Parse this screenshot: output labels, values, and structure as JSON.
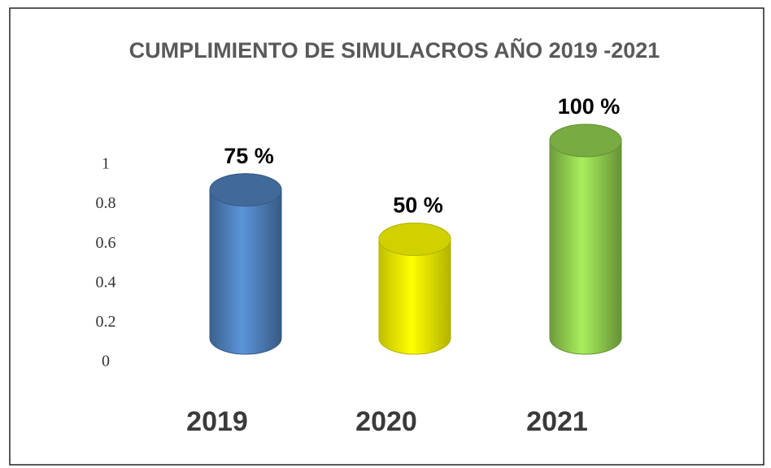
{
  "chart_data": {
    "type": "bar3d",
    "title": "CUMPLIMIENTO DE SIMULACROS AÑO 2019 -2021",
    "categories": [
      "2019",
      "2020",
      "2021"
    ],
    "values": [
      0.75,
      0.5,
      1
    ],
    "value_labels": [
      "75 %",
      "50 %",
      "100 %"
    ],
    "colors": [
      "#4f81bd",
      "#ffff00",
      "#92d050"
    ],
    "ylim": [
      0,
      1
    ],
    "yticks": [
      0,
      0.2,
      0.4,
      0.6,
      0.8,
      1
    ],
    "grid": false
  }
}
